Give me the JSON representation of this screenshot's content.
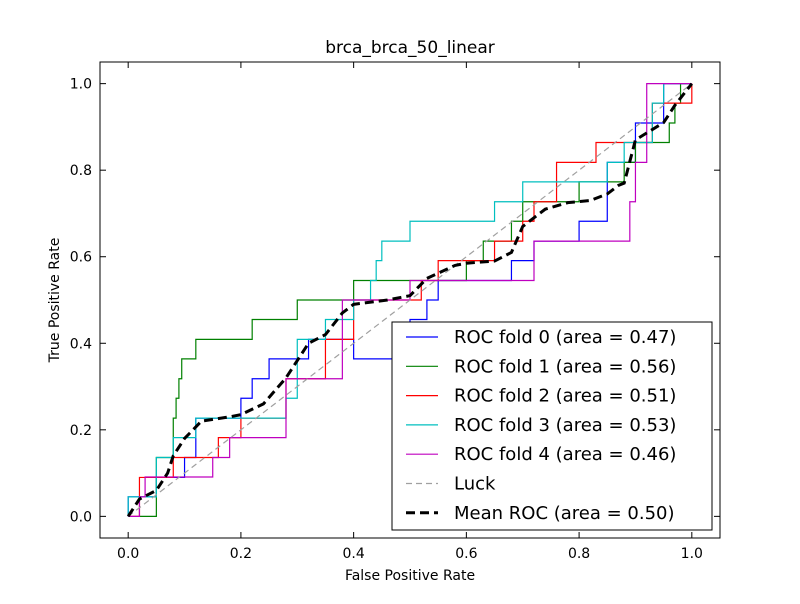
{
  "chart_data": {
    "type": "line",
    "title": "brca_brca_50_linear",
    "xlabel": "False Positive Rate",
    "ylabel": "True Positive Rate",
    "xlim": [
      -0.05,
      1.05
    ],
    "ylim": [
      -0.05,
      1.05
    ],
    "xticks": [
      "0.0",
      "0.2",
      "0.4",
      "0.6",
      "0.8",
      "1.0"
    ],
    "yticks": [
      "0.0",
      "0.2",
      "0.4",
      "0.6",
      "0.8",
      "1.0"
    ],
    "grid": false,
    "legend_position": "lower-right",
    "series": [
      {
        "name": "ROC fold 0 (area = 0.47)",
        "color": "#0000ff",
        "style": "solid",
        "step": true,
        "points": [
          [
            0,
            0
          ],
          [
            0,
            0.045
          ],
          [
            0.05,
            0.045
          ],
          [
            0.05,
            0.09
          ],
          [
            0.1,
            0.09
          ],
          [
            0.1,
            0.136
          ],
          [
            0.12,
            0.136
          ],
          [
            0.12,
            0.227
          ],
          [
            0.2,
            0.227
          ],
          [
            0.2,
            0.273
          ],
          [
            0.22,
            0.273
          ],
          [
            0.22,
            0.318
          ],
          [
            0.25,
            0.318
          ],
          [
            0.25,
            0.364
          ],
          [
            0.32,
            0.364
          ],
          [
            0.32,
            0.409
          ],
          [
            0.4,
            0.409
          ],
          [
            0.4,
            0.364
          ],
          [
            0.5,
            0.364
          ],
          [
            0.5,
            0.455
          ],
          [
            0.53,
            0.455
          ],
          [
            0.53,
            0.5
          ],
          [
            0.55,
            0.5
          ],
          [
            0.55,
            0.545
          ],
          [
            0.68,
            0.545
          ],
          [
            0.68,
            0.591
          ],
          [
            0.72,
            0.591
          ],
          [
            0.72,
            0.636
          ],
          [
            0.8,
            0.636
          ],
          [
            0.8,
            0.682
          ],
          [
            0.85,
            0.682
          ],
          [
            0.85,
            0.818
          ],
          [
            0.9,
            0.818
          ],
          [
            0.9,
            0.909
          ],
          [
            0.95,
            0.909
          ],
          [
            0.95,
            1.0
          ],
          [
            1.0,
            1.0
          ]
        ]
      },
      {
        "name": "ROC fold 1 (area = 0.56)",
        "color": "#008000",
        "style": "solid",
        "step": true,
        "points": [
          [
            0.02,
            0
          ],
          [
            0.05,
            0
          ],
          [
            0.05,
            0.136
          ],
          [
            0.08,
            0.136
          ],
          [
            0.08,
            0.227
          ],
          [
            0.085,
            0.227
          ],
          [
            0.085,
            0.273
          ],
          [
            0.09,
            0.273
          ],
          [
            0.09,
            0.318
          ],
          [
            0.095,
            0.318
          ],
          [
            0.095,
            0.364
          ],
          [
            0.12,
            0.364
          ],
          [
            0.12,
            0.409
          ],
          [
            0.22,
            0.409
          ],
          [
            0.22,
            0.455
          ],
          [
            0.3,
            0.455
          ],
          [
            0.3,
            0.5
          ],
          [
            0.4,
            0.5
          ],
          [
            0.4,
            0.545
          ],
          [
            0.6,
            0.545
          ],
          [
            0.6,
            0.591
          ],
          [
            0.63,
            0.591
          ],
          [
            0.63,
            0.636
          ],
          [
            0.68,
            0.636
          ],
          [
            0.68,
            0.682
          ],
          [
            0.7,
            0.682
          ],
          [
            0.7,
            0.727
          ],
          [
            0.8,
            0.727
          ],
          [
            0.8,
            0.773
          ],
          [
            0.88,
            0.773
          ],
          [
            0.88,
            0.818
          ],
          [
            0.9,
            0.818
          ],
          [
            0.9,
            0.864
          ],
          [
            0.96,
            0.864
          ],
          [
            0.96,
            0.909
          ],
          [
            0.97,
            0.909
          ],
          [
            0.97,
            0.955
          ],
          [
            0.98,
            0.955
          ],
          [
            0.98,
            1.0
          ],
          [
            1.0,
            1.0
          ]
        ]
      },
      {
        "name": "ROC fold 2 (area = 0.51)",
        "color": "#ff0000",
        "style": "solid",
        "step": true,
        "points": [
          [
            0,
            0
          ],
          [
            0.02,
            0
          ],
          [
            0.02,
            0.09
          ],
          [
            0.08,
            0.09
          ],
          [
            0.08,
            0.136
          ],
          [
            0.16,
            0.136
          ],
          [
            0.16,
            0.182
          ],
          [
            0.2,
            0.182
          ],
          [
            0.2,
            0.227
          ],
          [
            0.28,
            0.227
          ],
          [
            0.28,
            0.318
          ],
          [
            0.35,
            0.318
          ],
          [
            0.35,
            0.409
          ],
          [
            0.4,
            0.409
          ],
          [
            0.4,
            0.5
          ],
          [
            0.52,
            0.5
          ],
          [
            0.52,
            0.545
          ],
          [
            0.55,
            0.545
          ],
          [
            0.55,
            0.591
          ],
          [
            0.65,
            0.591
          ],
          [
            0.65,
            0.636
          ],
          [
            0.7,
            0.636
          ],
          [
            0.7,
            0.682
          ],
          [
            0.72,
            0.682
          ],
          [
            0.72,
            0.727
          ],
          [
            0.76,
            0.727
          ],
          [
            0.76,
            0.818
          ],
          [
            0.83,
            0.818
          ],
          [
            0.83,
            0.864
          ],
          [
            0.93,
            0.864
          ],
          [
            0.93,
            0.955
          ],
          [
            1.0,
            0.955
          ],
          [
            1.0,
            1.0
          ]
        ]
      },
      {
        "name": "ROC fold 3 (area = 0.53)",
        "color": "#00bfbf",
        "style": "solid",
        "step": true,
        "points": [
          [
            0,
            0
          ],
          [
            0,
            0.045
          ],
          [
            0.05,
            0.045
          ],
          [
            0.05,
            0.136
          ],
          [
            0.08,
            0.136
          ],
          [
            0.08,
            0.182
          ],
          [
            0.12,
            0.182
          ],
          [
            0.12,
            0.227
          ],
          [
            0.28,
            0.227
          ],
          [
            0.28,
            0.273
          ],
          [
            0.3,
            0.273
          ],
          [
            0.3,
            0.409
          ],
          [
            0.35,
            0.409
          ],
          [
            0.35,
            0.455
          ],
          [
            0.4,
            0.455
          ],
          [
            0.4,
            0.5
          ],
          [
            0.43,
            0.5
          ],
          [
            0.43,
            0.545
          ],
          [
            0.44,
            0.545
          ],
          [
            0.44,
            0.591
          ],
          [
            0.45,
            0.591
          ],
          [
            0.45,
            0.636
          ],
          [
            0.5,
            0.636
          ],
          [
            0.5,
            0.682
          ],
          [
            0.65,
            0.682
          ],
          [
            0.65,
            0.727
          ],
          [
            0.7,
            0.727
          ],
          [
            0.7,
            0.773
          ],
          [
            0.85,
            0.773
          ],
          [
            0.85,
            0.818
          ],
          [
            0.88,
            0.818
          ],
          [
            0.88,
            0.864
          ],
          [
            0.93,
            0.864
          ],
          [
            0.93,
            0.955
          ],
          [
            0.95,
            0.955
          ],
          [
            0.95,
            1.0
          ],
          [
            1.0,
            1.0
          ]
        ]
      },
      {
        "name": "ROC fold 4 (area = 0.46)",
        "color": "#bf00bf",
        "style": "solid",
        "step": true,
        "points": [
          [
            0,
            0
          ],
          [
            0.02,
            0
          ],
          [
            0.02,
            0.045
          ],
          [
            0.03,
            0.045
          ],
          [
            0.03,
            0.091
          ],
          [
            0.15,
            0.091
          ],
          [
            0.15,
            0.136
          ],
          [
            0.18,
            0.136
          ],
          [
            0.18,
            0.182
          ],
          [
            0.28,
            0.182
          ],
          [
            0.28,
            0.318
          ],
          [
            0.38,
            0.318
          ],
          [
            0.38,
            0.5
          ],
          [
            0.5,
            0.5
          ],
          [
            0.5,
            0.545
          ],
          [
            0.72,
            0.545
          ],
          [
            0.72,
            0.636
          ],
          [
            0.89,
            0.636
          ],
          [
            0.89,
            0.727
          ],
          [
            0.9,
            0.727
          ],
          [
            0.9,
            0.818
          ],
          [
            0.92,
            0.818
          ],
          [
            0.92,
            1.0
          ],
          [
            1.0,
            1.0
          ]
        ]
      },
      {
        "name": "Luck",
        "color": "#a0a0a0",
        "style": "dashed",
        "step": false,
        "points": [
          [
            0,
            0
          ],
          [
            1,
            1
          ]
        ]
      },
      {
        "name": "Mean ROC (area = 0.50)",
        "color": "#000000",
        "style": "dashed-bold",
        "step": false,
        "points": [
          [
            0,
            0
          ],
          [
            0.01,
            0.02
          ],
          [
            0.02,
            0.04
          ],
          [
            0.05,
            0.06
          ],
          [
            0.07,
            0.1
          ],
          [
            0.08,
            0.14
          ],
          [
            0.1,
            0.18
          ],
          [
            0.13,
            0.22
          ],
          [
            0.18,
            0.23
          ],
          [
            0.2,
            0.235
          ],
          [
            0.24,
            0.26
          ],
          [
            0.28,
            0.32
          ],
          [
            0.3,
            0.36
          ],
          [
            0.32,
            0.4
          ],
          [
            0.35,
            0.42
          ],
          [
            0.38,
            0.47
          ],
          [
            0.4,
            0.49
          ],
          [
            0.46,
            0.5
          ],
          [
            0.5,
            0.51
          ],
          [
            0.53,
            0.55
          ],
          [
            0.58,
            0.58
          ],
          [
            0.6,
            0.585
          ],
          [
            0.65,
            0.59
          ],
          [
            0.68,
            0.61
          ],
          [
            0.7,
            0.67
          ],
          [
            0.74,
            0.71
          ],
          [
            0.78,
            0.725
          ],
          [
            0.82,
            0.73
          ],
          [
            0.85,
            0.745
          ],
          [
            0.87,
            0.765
          ],
          [
            0.88,
            0.77
          ],
          [
            0.89,
            0.82
          ],
          [
            0.9,
            0.87
          ],
          [
            0.95,
            0.91
          ],
          [
            0.97,
            0.95
          ],
          [
            1.0,
            1.0
          ]
        ]
      }
    ]
  }
}
